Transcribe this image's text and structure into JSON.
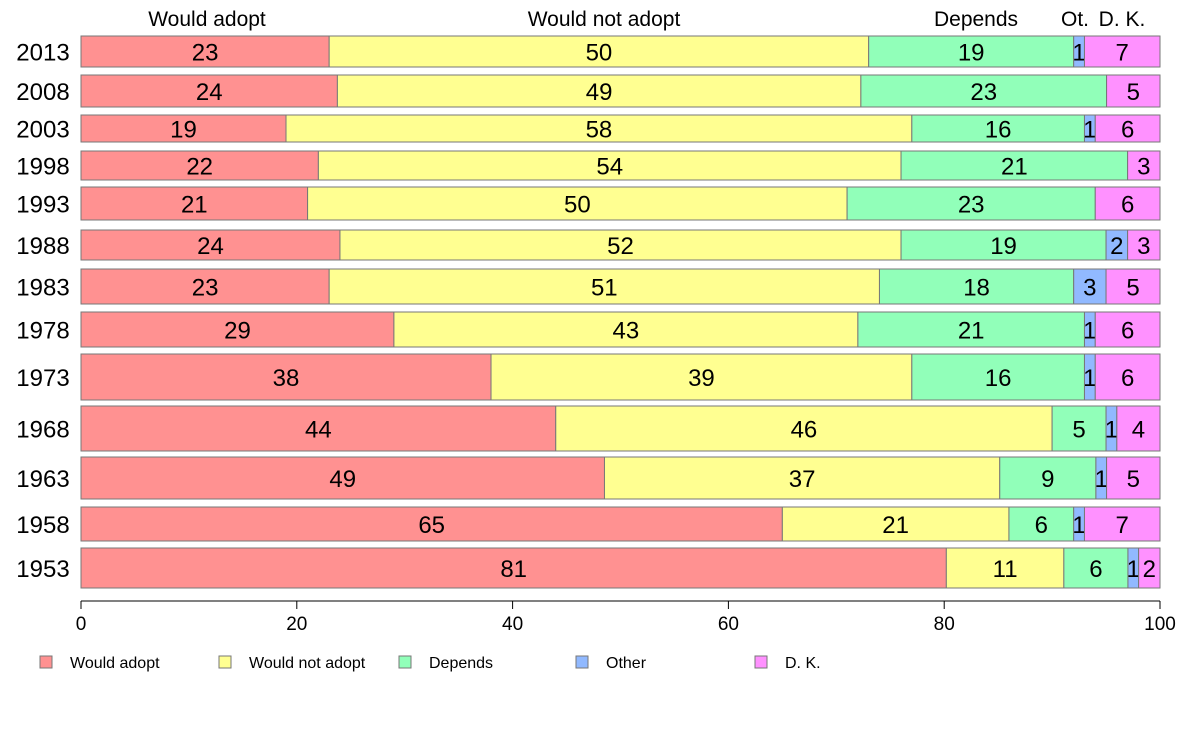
{
  "chart_data": {
    "type": "bar",
    "orientation": "horizontal",
    "stacked": true,
    "categories": [
      "2013",
      "2008",
      "2003",
      "1998",
      "1993",
      "1988",
      "1983",
      "1978",
      "1973",
      "1968",
      "1963",
      "1958",
      "1953"
    ],
    "column_headers": [
      "Would adopt",
      "Would not adopt",
      "Depends",
      "Ot.",
      "D. K."
    ],
    "series": [
      {
        "name": "Would adopt",
        "color": "#ff9191",
        "values": [
          23,
          24,
          19,
          22,
          21,
          24,
          23,
          29,
          38,
          44,
          49,
          65,
          81
        ]
      },
      {
        "name": "Would not adopt",
        "color": "#ffff91",
        "values": [
          50,
          49,
          58,
          54,
          50,
          52,
          51,
          43,
          39,
          46,
          37,
          21,
          11
        ]
      },
      {
        "name": "Depends",
        "color": "#91ffb9",
        "values": [
          19,
          23,
          16,
          21,
          23,
          19,
          18,
          21,
          16,
          5,
          9,
          6,
          6
        ]
      },
      {
        "name": "Other",
        "color": "#91b9ff",
        "values": [
          1,
          0,
          1,
          0,
          0,
          2,
          3,
          1,
          1,
          1,
          1,
          1,
          1
        ]
      },
      {
        "name": "D. K.",
        "color": "#ff91ff",
        "values": [
          7,
          5,
          6,
          3,
          6,
          3,
          5,
          6,
          6,
          4,
          5,
          7,
          2
        ]
      }
    ],
    "stack_totals": [
      100,
      101,
      100,
      100,
      100,
      100,
      100,
      100,
      100,
      100,
      101,
      100,
      101
    ],
    "xlim": [
      0,
      100
    ],
    "xticks": [
      0,
      20,
      40,
      60,
      80,
      100
    ],
    "grid": false,
    "legend_position": "bottom"
  }
}
